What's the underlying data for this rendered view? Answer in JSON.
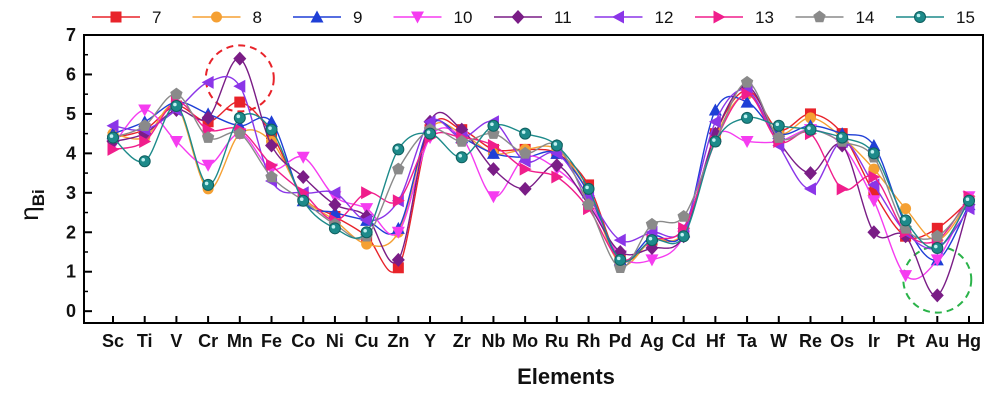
{
  "chart_data": {
    "type": "line",
    "title": "",
    "xlabel": "Elements",
    "ylabel": "η",
    "ylabel_sub": "Bi",
    "categories": [
      "Sc",
      "Ti",
      "V",
      "Cr",
      "Mn",
      "Fe",
      "Co",
      "Ni",
      "Cu",
      "Zn",
      "Y",
      "Zr",
      "Nb",
      "Mo",
      "Ru",
      "Rh",
      "Pd",
      "Ag",
      "Cd",
      "Hf",
      "Ta",
      "W",
      "Re",
      "Os",
      "Ir",
      "Pt",
      "Au",
      "Hg"
    ],
    "ylim": [
      -0.3,
      7
    ],
    "yticks": [
      "0",
      "1",
      "2",
      "3",
      "4",
      "5",
      "6",
      "7"
    ],
    "grid": false,
    "legend_position": "top",
    "series": [
      {
        "name": "7",
        "color": "#e8232a",
        "marker": "square",
        "values": [
          4.4,
          4.6,
          5.2,
          4.8,
          5.3,
          4.5,
          2.9,
          2.4,
          1.9,
          1.1,
          4.6,
          4.6,
          4.1,
          4.1,
          4.0,
          3.2,
          1.3,
          1.8,
          2.0,
          4.5,
          5.6,
          4.6,
          5.0,
          4.5,
          3.0,
          1.9,
          2.1,
          2.8
        ]
      },
      {
        "name": "8",
        "color": "#f5a033",
        "marker": "circle",
        "values": [
          4.5,
          4.4,
          5.2,
          3.1,
          4.5,
          4.3,
          2.9,
          2.3,
          1.7,
          2.0,
          4.6,
          4.5,
          4.0,
          4.1,
          4.1,
          3.0,
          1.2,
          1.8,
          2.0,
          4.4,
          5.5,
          4.5,
          4.9,
          4.4,
          3.6,
          2.6,
          1.8,
          2.8
        ]
      },
      {
        "name": "9",
        "color": "#1f3fd6",
        "marker": "triangle-up",
        "values": [
          4.5,
          4.8,
          5.3,
          5.0,
          4.7,
          4.8,
          2.8,
          2.5,
          2.3,
          2.1,
          4.7,
          4.4,
          4.0,
          3.9,
          4.0,
          3.0,
          1.3,
          1.9,
          2.0,
          5.1,
          5.3,
          4.5,
          4.7,
          4.5,
          4.2,
          2.2,
          1.3,
          2.7
        ]
      },
      {
        "name": "10",
        "color": "#f53cf0",
        "marker": "triangle-down",
        "values": [
          4.2,
          5.1,
          4.3,
          3.7,
          4.5,
          3.6,
          3.9,
          2.9,
          2.6,
          2.0,
          4.4,
          4.4,
          2.9,
          3.9,
          3.6,
          2.8,
          1.4,
          1.3,
          1.9,
          4.4,
          4.3,
          4.3,
          4.6,
          4.2,
          2.8,
          0.9,
          1.3,
          2.9
        ]
      },
      {
        "name": "11",
        "color": "#7a1d86",
        "marker": "diamond",
        "values": [
          4.3,
          4.5,
          5.1,
          4.9,
          6.4,
          4.2,
          3.4,
          2.7,
          2.4,
          1.3,
          4.8,
          4.6,
          3.6,
          3.1,
          3.7,
          2.7,
          1.5,
          1.6,
          1.9,
          4.5,
          5.7,
          4.3,
          3.5,
          4.2,
          2.0,
          1.9,
          0.4,
          2.7
        ]
      },
      {
        "name": "12",
        "color": "#8b35e8",
        "marker": "triangle-left",
        "values": [
          4.7,
          4.6,
          5.1,
          5.8,
          5.7,
          3.3,
          3.0,
          3.0,
          2.3,
          2.8,
          4.8,
          4.4,
          4.8,
          3.8,
          4.0,
          2.9,
          1.8,
          2.0,
          2.1,
          4.8,
          5.6,
          4.2,
          3.1,
          4.3,
          3.2,
          2.0,
          1.6,
          2.6
        ]
      },
      {
        "name": "13",
        "color": "#f01e8c",
        "marker": "triangle-right",
        "values": [
          4.1,
          4.3,
          5.3,
          4.6,
          4.6,
          3.7,
          3.0,
          2.3,
          3.0,
          2.8,
          4.4,
          4.4,
          4.2,
          3.6,
          3.4,
          2.6,
          1.3,
          1.8,
          2.1,
          4.3,
          5.5,
          4.3,
          4.5,
          3.1,
          3.4,
          2.0,
          1.8,
          2.9
        ]
      },
      {
        "name": "14",
        "color": "#8a8a8a",
        "marker": "pentagon",
        "values": [
          4.4,
          4.7,
          5.5,
          4.4,
          4.5,
          3.4,
          2.8,
          2.2,
          1.9,
          3.6,
          4.6,
          4.3,
          4.5,
          4.0,
          4.2,
          2.7,
          1.1,
          2.2,
          2.4,
          4.3,
          5.8,
          4.4,
          4.6,
          4.3,
          3.9,
          2.1,
          1.9,
          2.8
        ]
      },
      {
        "name": "15",
        "color": "#1d8a8a",
        "marker": "circle-dot",
        "values": [
          4.4,
          3.8,
          5.2,
          3.2,
          4.9,
          4.6,
          2.8,
          2.1,
          2.0,
          4.1,
          4.5,
          3.9,
          4.7,
          4.5,
          4.2,
          3.1,
          1.3,
          1.8,
          1.9,
          4.3,
          4.9,
          4.7,
          4.6,
          4.4,
          4.0,
          2.3,
          1.6,
          2.8
        ]
      }
    ],
    "annotations": [
      {
        "type": "dashed-circle",
        "color": "#e8232a",
        "category": "Mn",
        "y": 5.9
      },
      {
        "type": "dashed-circle",
        "color": "#2bb34a",
        "category": "Au",
        "y": 0.8
      }
    ]
  }
}
